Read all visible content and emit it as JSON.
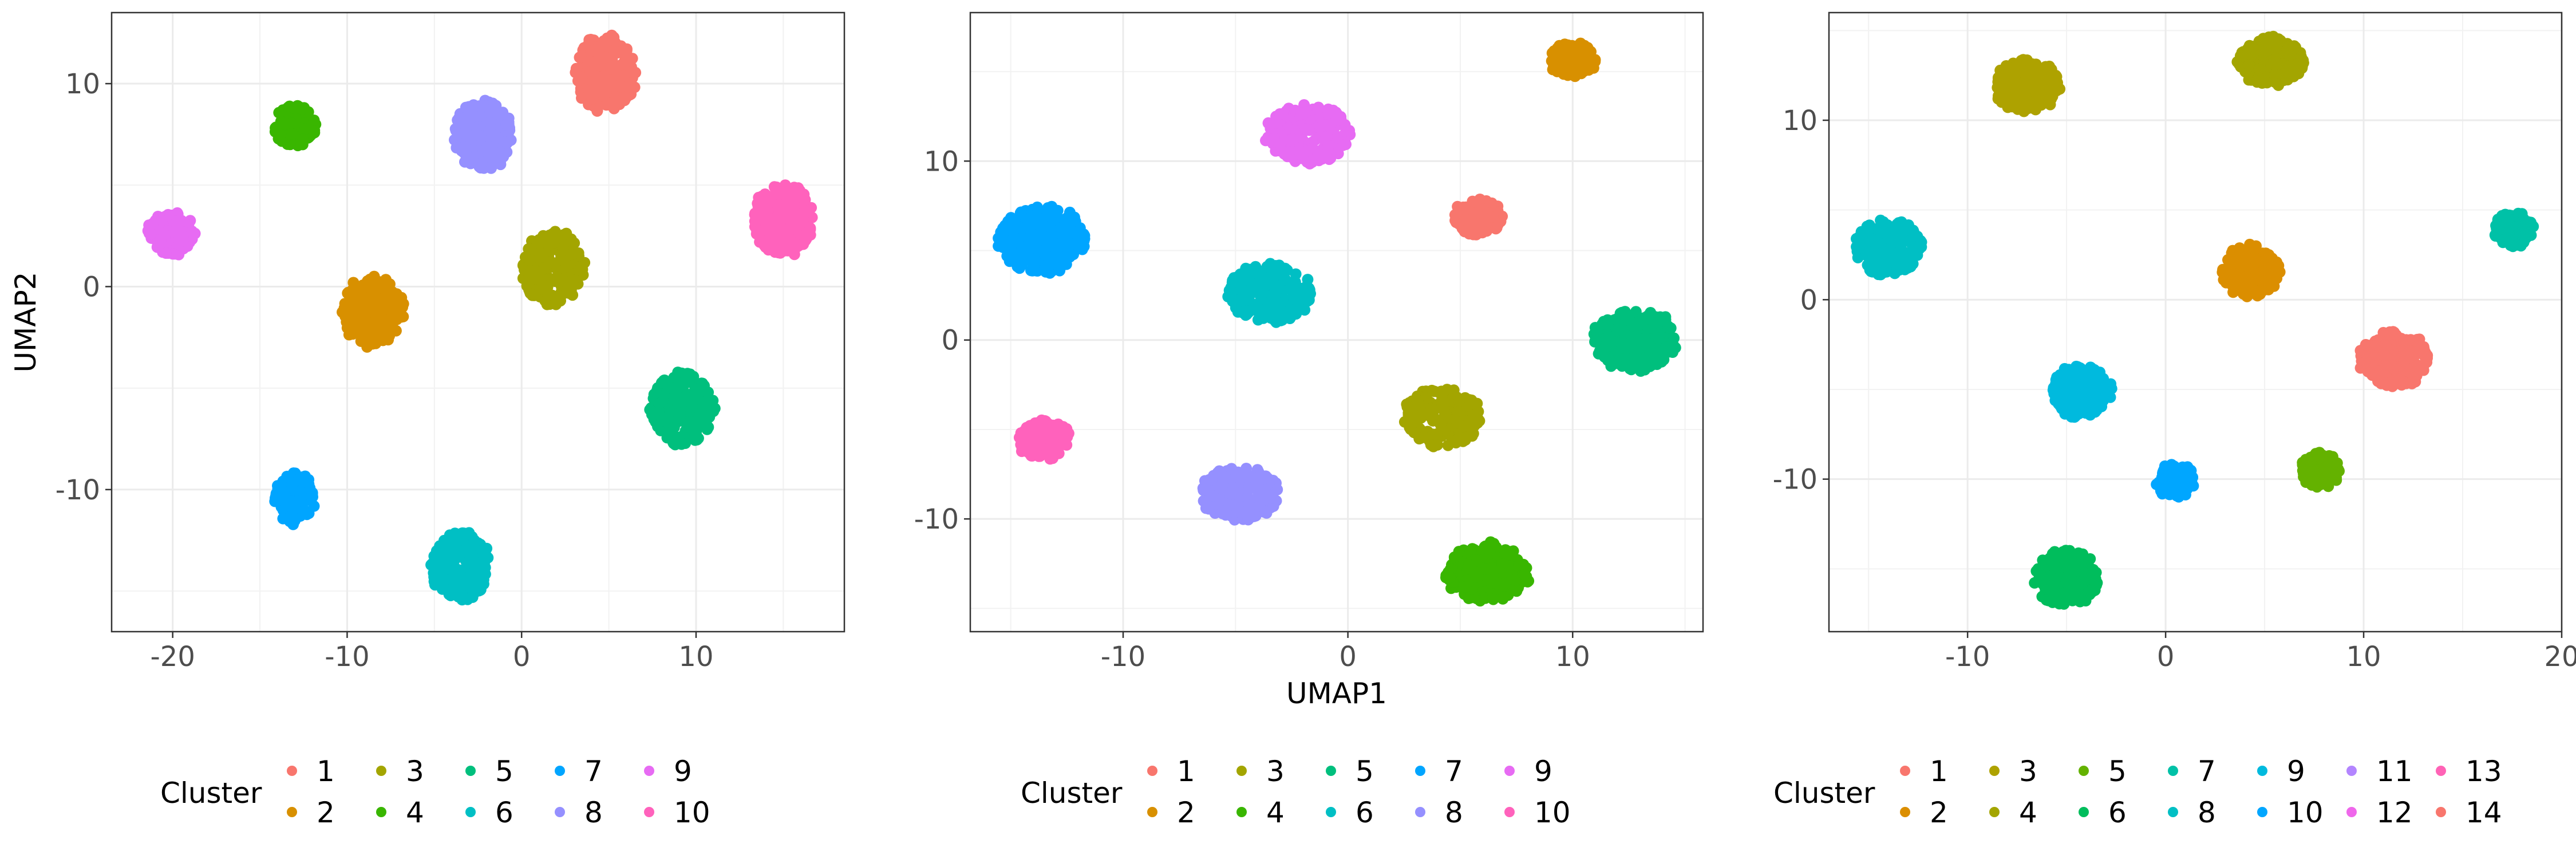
{
  "chart_data": [
    {
      "type": "scatter",
      "xlabel": "",
      "ylabel": "UMAP2",
      "xlim": [
        -23.5,
        18.5
      ],
      "ylim": [
        -17.0,
        13.5
      ],
      "xticks": [
        -20,
        -10,
        0,
        10
      ],
      "yticks": [
        -10,
        0,
        10
      ],
      "xtick_labels": [
        "-20",
        "-10",
        "0",
        "10"
      ],
      "ytick_labels": [
        "-10",
        "0",
        "10"
      ],
      "grid": true,
      "legend": {
        "title": "Cluster",
        "position": "bottom",
        "rows": 2
      },
      "clusters": [
        {
          "name": "1",
          "color": "#F8766D",
          "x": 4.8,
          "y": 10.5,
          "rx": 1.8,
          "ry": 1.9,
          "n": 260
        },
        {
          "name": "2",
          "color": "#D89000",
          "x": -8.5,
          "y": -1.2,
          "rx": 1.8,
          "ry": 1.8,
          "n": 240
        },
        {
          "name": "3",
          "color": "#A3A500",
          "x": 1.8,
          "y": 0.9,
          "rx": 1.8,
          "ry": 1.9,
          "n": 240
        },
        {
          "name": "4",
          "color": "#39B600",
          "x": -13.0,
          "y": 7.9,
          "rx": 1.2,
          "ry": 1.1,
          "n": 130
        },
        {
          "name": "5",
          "color": "#00BF7D",
          "x": 9.2,
          "y": -6.0,
          "rx": 1.9,
          "ry": 1.8,
          "n": 240
        },
        {
          "name": "6",
          "color": "#00BFC4",
          "x": -3.5,
          "y": -13.8,
          "rx": 1.7,
          "ry": 1.8,
          "n": 220
        },
        {
          "name": "7",
          "color": "#00A5FF",
          "x": -13.0,
          "y": -10.4,
          "rx": 1.2,
          "ry": 1.3,
          "n": 130
        },
        {
          "name": "8",
          "color": "#9590FF",
          "x": -2.2,
          "y": 7.5,
          "rx": 1.7,
          "ry": 1.8,
          "n": 220
        },
        {
          "name": "9",
          "color": "#E76BF3",
          "x": -20.1,
          "y": 2.6,
          "rx": 1.4,
          "ry": 1.1,
          "n": 130
        },
        {
          "name": "10",
          "color": "#FF62BC",
          "x": 15.0,
          "y": 3.3,
          "rx": 1.8,
          "ry": 1.8,
          "n": 230
        }
      ]
    },
    {
      "type": "scatter",
      "xlabel": "UMAP1",
      "ylabel": "",
      "xlim": [
        -16.8,
        15.8
      ],
      "ylim": [
        -16.3,
        18.3
      ],
      "xticks": [
        -10,
        0,
        10
      ],
      "yticks": [
        -10,
        0,
        10
      ],
      "xtick_labels": [
        "-10",
        "0",
        "10"
      ],
      "ytick_labels": [
        "-10",
        "0",
        "10"
      ],
      "grid": true,
      "legend": {
        "title": "Cluster",
        "position": "bottom",
        "rows": 2
      },
      "clusters": [
        {
          "name": "1",
          "color": "#F8766D",
          "x": 5.8,
          "y": 6.9,
          "rx": 1.1,
          "ry": 1.1,
          "n": 120
        },
        {
          "name": "2",
          "color": "#D89000",
          "x": 10.0,
          "y": 15.7,
          "rx": 1.1,
          "ry": 1.0,
          "n": 110
        },
        {
          "name": "3",
          "color": "#A3A500",
          "x": 4.2,
          "y": -4.3,
          "rx": 1.8,
          "ry": 1.7,
          "n": 230
        },
        {
          "name": "4",
          "color": "#39B600",
          "x": 6.2,
          "y": -13.0,
          "rx": 1.9,
          "ry": 1.7,
          "n": 230
        },
        {
          "name": "5",
          "color": "#00BF7D",
          "x": 12.8,
          "y": 0.0,
          "rx": 1.9,
          "ry": 1.8,
          "n": 240
        },
        {
          "name": "6",
          "color": "#00BFC4",
          "x": -3.5,
          "y": 2.6,
          "rx": 1.9,
          "ry": 1.7,
          "n": 240
        },
        {
          "name": "7",
          "color": "#00A5FF",
          "x": -13.6,
          "y": 5.6,
          "rx": 2.0,
          "ry": 1.9,
          "n": 260
        },
        {
          "name": "8",
          "color": "#9590FF",
          "x": -4.8,
          "y": -8.6,
          "rx": 1.8,
          "ry": 1.5,
          "n": 240
        },
        {
          "name": "9",
          "color": "#E76BF3",
          "x": -1.8,
          "y": 11.5,
          "rx": 1.9,
          "ry": 1.7,
          "n": 240
        },
        {
          "name": "10",
          "color": "#FF62BC",
          "x": -13.5,
          "y": -5.6,
          "rx": 1.2,
          "ry": 1.2,
          "n": 120
        }
      ]
    },
    {
      "type": "scatter",
      "xlabel": "",
      "ylabel": "",
      "xlim": [
        -17.0,
        20.0
      ],
      "ylim": [
        -18.5,
        16.0
      ],
      "xticks": [
        -10,
        0,
        10,
        20
      ],
      "yticks": [
        -10,
        0,
        10
      ],
      "xtick_labels": [
        "-10",
        "0",
        "10",
        "20"
      ],
      "ytick_labels": [
        "-10",
        "0",
        "10"
      ],
      "grid": true,
      "legend": {
        "title": "Cluster",
        "position": "bottom",
        "rows": 2
      },
      "clusters": [
        {
          "name": "1",
          "color": "#F8766D",
          "x": 11.5,
          "y": -3.3,
          "rx": 1.8,
          "ry": 1.6,
          "n": 220
        },
        {
          "name": "2",
          "color": "#DB8E00",
          "x": 4.3,
          "y": 1.6,
          "rx": 1.5,
          "ry": 1.5,
          "n": 180
        },
        {
          "name": "3",
          "color": "#AEA200",
          "x": -7.0,
          "y": 11.9,
          "rx": 1.7,
          "ry": 1.5,
          "n": 200
        },
        {
          "name": "4",
          "color": "#A3A500",
          "x": 5.3,
          "y": 13.3,
          "rx": 1.7,
          "ry": 1.4,
          "n": 200
        },
        {
          "name": "5",
          "color": "#64B200",
          "x": 7.8,
          "y": -9.5,
          "rx": 1.0,
          "ry": 1.0,
          "n": 100
        },
        {
          "name": "6",
          "color": "#00BD5C",
          "x": -5.0,
          "y": -15.5,
          "rx": 1.7,
          "ry": 1.6,
          "n": 200
        },
        {
          "name": "7",
          "color": "#00C1A7",
          "x": 17.6,
          "y": 3.9,
          "rx": 1.1,
          "ry": 1.0,
          "n": 100
        },
        {
          "name": "8",
          "color": "#00BFC4",
          "x": -14.0,
          "y": 2.9,
          "rx": 1.7,
          "ry": 1.6,
          "n": 200
        },
        {
          "name": "9",
          "color": "#00BADE",
          "x": -4.3,
          "y": -5.1,
          "rx": 1.6,
          "ry": 1.5,
          "n": 180
        },
        {
          "name": "10",
          "color": "#00A6FF",
          "x": 0.5,
          "y": -10.1,
          "rx": 1.0,
          "ry": 1.0,
          "n": 90
        },
        {
          "name": "11",
          "color": "#B385FF",
          "x": 0.0,
          "y": 0.0,
          "rx": 0,
          "ry": 0,
          "n": 0
        },
        {
          "name": "12",
          "color": "#EF67EB",
          "x": 0.0,
          "y": 0.0,
          "rx": 0,
          "ry": 0,
          "n": 0
        },
        {
          "name": "13",
          "color": "#FF63B6",
          "x": 0.0,
          "y": 0.0,
          "rx": 0,
          "ry": 0,
          "n": 0
        },
        {
          "name": "14",
          "color": "#F8766D",
          "x": 0.0,
          "y": 0.0,
          "rx": 0,
          "ry": 0,
          "n": 0
        }
      ]
    }
  ]
}
